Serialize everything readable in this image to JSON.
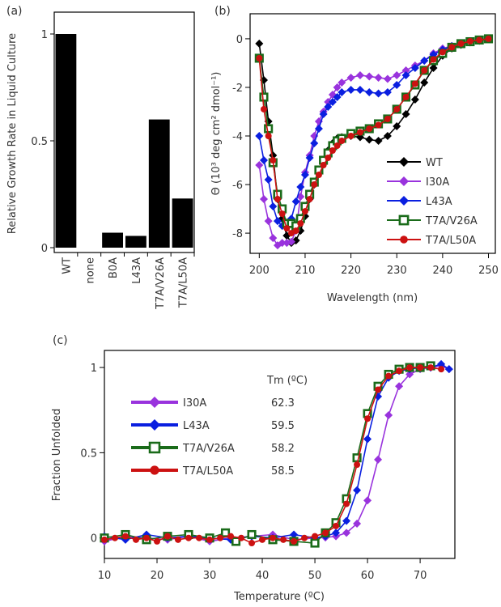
{
  "chart_data": [
    {
      "panel": "(a)",
      "type": "bar",
      "ylabel": "Relative Growth Rate in Liquid Culture",
      "categories": [
        "WT",
        "none",
        "B0A",
        "L43A",
        "T7A/V26A",
        "T7A/L50A"
      ],
      "values": [
        1.0,
        0.0,
        0.07,
        0.055,
        0.6,
        0.23
      ],
      "ylim": [
        0,
        1.1
      ],
      "yticks": [
        {
          "v": 0,
          "label": "0"
        },
        {
          "v": 0.5,
          "label": "0.5"
        },
        {
          "v": 1,
          "label": "1"
        }
      ],
      "color": "#000000"
    },
    {
      "panel": "(b)",
      "type": "line",
      "xlabel": "Wavelength (nm)",
      "ylabel": "Θ (10³ deg cm² dmol⁻¹)",
      "xlim": [
        198,
        251.5
      ],
      "ylim": [
        -8.83,
        1.03
      ],
      "xticks": [
        {
          "v": 200,
          "label": "200"
        },
        {
          "v": 210,
          "label": "210"
        },
        {
          "v": 220,
          "label": "220"
        },
        {
          "v": 230,
          "label": "230"
        },
        {
          "v": 240,
          "label": "240"
        },
        {
          "v": 250,
          "label": "250"
        }
      ],
      "yticks": [
        {
          "v": 0,
          "label": "0"
        },
        {
          "v": -2,
          "label": "-2"
        },
        {
          "v": -4,
          "label": "-4"
        },
        {
          "v": -6,
          "label": "-6"
        },
        {
          "v": -8,
          "label": "-8"
        }
      ],
      "legend_position": "bottom-right",
      "x": [
        200,
        201,
        202,
        203,
        204,
        205,
        206,
        207,
        208,
        209,
        210,
        211,
        212,
        213,
        214,
        215,
        216,
        217,
        218,
        220,
        222,
        224,
        226,
        228,
        230,
        232,
        234,
        236,
        238,
        240,
        242,
        244,
        246,
        248,
        250
      ],
      "series": [
        {
          "name": "WT",
          "color": "#000000",
          "marker": "diamond",
          "values": [
            -0.2,
            -1.7,
            -3.4,
            -4.8,
            -6.6,
            -7.4,
            -8.1,
            -8.4,
            -8.3,
            -7.9,
            -7.3,
            -6.6,
            -6.0,
            -5.4,
            -5.0,
            -4.6,
            -4.3,
            -4.1,
            -4.05,
            -4.0,
            -4.05,
            -4.15,
            -4.2,
            -4.0,
            -3.6,
            -3.1,
            -2.5,
            -1.8,
            -1.2,
            -0.7,
            -0.4,
            -0.25,
            -0.15,
            -0.08,
            0
          ]
        },
        {
          "name": "I30A",
          "color": "#9933dd",
          "marker": "diamond",
          "values": [
            -5.2,
            -6.6,
            -7.5,
            -8.2,
            -8.5,
            -8.4,
            -8.4,
            -8.35,
            -7.9,
            -6.5,
            -5.5,
            -4.8,
            -4.0,
            -3.4,
            -3.0,
            -2.6,
            -2.3,
            -2.0,
            -1.8,
            -1.6,
            -1.5,
            -1.55,
            -1.6,
            -1.65,
            -1.5,
            -1.3,
            -1.1,
            -0.9,
            -0.6,
            -0.4,
            -0.3,
            -0.2,
            -0.1,
            -0.05,
            0
          ]
        },
        {
          "name": "L43A",
          "color": "#0a1fe0",
          "marker": "diamond",
          "values": [
            -4.0,
            -5.0,
            -5.8,
            -6.9,
            -7.5,
            -7.7,
            -7.6,
            -7.4,
            -6.7,
            -6.1,
            -5.6,
            -4.9,
            -4.3,
            -3.7,
            -3.1,
            -2.8,
            -2.6,
            -2.4,
            -2.2,
            -2.1,
            -2.1,
            -2.2,
            -2.25,
            -2.2,
            -1.9,
            -1.5,
            -1.2,
            -0.9,
            -0.65,
            -0.45,
            -0.3,
            -0.2,
            -0.12,
            -0.05,
            0
          ]
        },
        {
          "name": "T7A/V26A",
          "color": "#1a6b1a",
          "marker": "square",
          "values": [
            -0.8,
            -2.4,
            -3.7,
            -5.1,
            -6.4,
            -7.0,
            -7.6,
            -7.6,
            -7.7,
            -7.4,
            -6.9,
            -6.4,
            -5.9,
            -5.4,
            -5.0,
            -4.7,
            -4.4,
            -4.2,
            -4.1,
            -3.9,
            -3.8,
            -3.7,
            -3.5,
            -3.3,
            -2.9,
            -2.4,
            -1.9,
            -1.3,
            -0.9,
            -0.6,
            -0.35,
            -0.2,
            -0.12,
            -0.05,
            0
          ]
        },
        {
          "name": "T7A/L50A",
          "color": "#cc1111",
          "marker": "circle",
          "values": [
            -0.8,
            -2.9,
            -4.0,
            -5.0,
            -6.6,
            -7.2,
            -7.8,
            -8.0,
            -7.9,
            -7.6,
            -7.1,
            -6.6,
            -6.0,
            -5.6,
            -5.2,
            -4.9,
            -4.6,
            -4.4,
            -4.2,
            -4.0,
            -3.85,
            -3.7,
            -3.55,
            -3.3,
            -2.9,
            -2.4,
            -1.85,
            -1.3,
            -0.85,
            -0.55,
            -0.35,
            -0.2,
            -0.1,
            -0.05,
            0
          ]
        }
      ]
    },
    {
      "panel": "(c)",
      "type": "line",
      "xlabel": "Temperature (ºC)",
      "ylabel": "Fraction Unfolded",
      "xlim": [
        10,
        76.6
      ],
      "ylim": [
        -0.12,
        1.1
      ],
      "xticks": [
        {
          "v": 10,
          "label": "10"
        },
        {
          "v": 20,
          "label": "20"
        },
        {
          "v": 30,
          "label": "30"
        },
        {
          "v": 40,
          "label": "40"
        },
        {
          "v": 50,
          "label": "50"
        },
        {
          "v": 60,
          "label": "60"
        },
        {
          "v": 70,
          "label": "70"
        }
      ],
      "yticks": [
        {
          "v": 0,
          "label": "0"
        },
        {
          "v": 0.5,
          "label": "0.5"
        },
        {
          "v": 1,
          "label": "1"
        }
      ],
      "legend_position": "top-left",
      "legend_value_header": "Tm (ºC)",
      "series": [
        {
          "name": "I30A",
          "tm": "62.3",
          "color": "#9933dd",
          "marker": "diamond",
          "x": [
            10,
            14,
            18,
            22,
            26,
            30,
            34,
            38,
            42,
            46,
            50,
            52,
            54,
            56,
            58,
            60,
            62,
            64,
            66,
            68,
            70,
            72,
            74,
            75.5
          ],
          "values": [
            -0.02,
            0.01,
            0.0,
            -0.01,
            0.01,
            -0.02,
            0.0,
            0.01,
            0.02,
            -0.01,
            0.0,
            0.003,
            0.01,
            0.03,
            0.084,
            0.22,
            0.46,
            0.72,
            0.89,
            0.96,
            0.99,
            1.0,
            1.01,
            0.99
          ]
        },
        {
          "name": "L43A",
          "tm": "59.5",
          "color": "#0a1fe0",
          "marker": "diamond",
          "x": [
            10,
            14,
            18,
            22,
            26,
            30,
            34,
            38,
            42,
            46,
            50,
            52,
            54,
            56,
            58,
            60,
            62,
            64,
            66,
            68,
            70,
            72,
            74,
            75.5
          ],
          "values": [
            0.01,
            -0.01,
            0.02,
            0.0,
            0.01,
            0.0,
            -0.01,
            0.01,
            0.0,
            0.02,
            0.0,
            0.01,
            0.03,
            0.1,
            0.28,
            0.58,
            0.83,
            0.94,
            0.98,
            0.99,
            1.0,
            1.0,
            1.02,
            0.99
          ]
        },
        {
          "name": "T7A/V26A",
          "tm": "58.2",
          "color": "#1a6b1a",
          "marker": "square",
          "x": [
            10,
            14,
            18,
            22,
            26,
            30,
            33,
            35,
            38,
            42,
            46,
            50,
            52,
            54,
            56,
            58,
            60,
            62,
            64,
            66,
            68,
            70,
            72
          ],
          "values": [
            0.0,
            0.02,
            -0.01,
            0.01,
            0.02,
            0.0,
            0.03,
            -0.02,
            0.02,
            -0.01,
            -0.02,
            -0.03,
            0.03,
            0.09,
            0.23,
            0.47,
            0.73,
            0.89,
            0.96,
            0.99,
            1.0,
            1.0,
            1.01
          ]
        },
        {
          "name": "T7A/L50A",
          "tm": "58.5",
          "color": "#cc1111",
          "marker": "circle",
          "x": [
            10,
            12,
            14,
            16,
            18,
            20,
            22,
            24,
            26,
            28,
            30,
            32,
            34,
            36,
            38,
            40,
            42,
            44,
            46,
            48,
            50,
            52,
            54,
            56,
            58,
            60,
            62,
            64,
            66,
            68,
            70,
            72,
            74
          ],
          "values": [
            -0.01,
            0.0,
            0.01,
            -0.01,
            0.0,
            -0.02,
            0.01,
            -0.01,
            0.0,
            0.0,
            -0.01,
            0.0,
            0.01,
            0.0,
            -0.03,
            -0.01,
            0.0,
            -0.01,
            -0.02,
            0.0,
            0.01,
            0.03,
            0.07,
            0.2,
            0.43,
            0.7,
            0.87,
            0.95,
            0.98,
            1.0,
            1.0,
            1.0,
            0.99
          ]
        }
      ]
    }
  ]
}
